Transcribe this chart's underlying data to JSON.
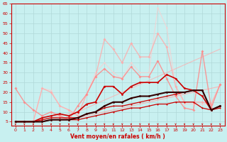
{
  "xlabel": "Vent moyen/en rafales ( km/h )",
  "xlim": [
    -0.5,
    23.5
  ],
  "ylim": [
    3,
    65
  ],
  "yticks": [
    5,
    10,
    15,
    20,
    25,
    30,
    35,
    40,
    45,
    50,
    55,
    60,
    65
  ],
  "xticks": [
    0,
    1,
    2,
    3,
    4,
    5,
    6,
    7,
    8,
    9,
    10,
    11,
    12,
    13,
    14,
    15,
    16,
    17,
    18,
    19,
    20,
    21,
    22,
    23
  ],
  "bg_color": "#c8f0f0",
  "grid_color": "#b0d8d8",
  "lines": [
    {
      "y": [
        5,
        5,
        5,
        5,
        6,
        6,
        7,
        7,
        8,
        9,
        10,
        11,
        12,
        13,
        14,
        15,
        16,
        17,
        18,
        19,
        20,
        21,
        22,
        23
      ],
      "color": "#ffaaaa",
      "lw": 0.8,
      "marker": null,
      "ms": 0,
      "alpha": 0.8
    },
    {
      "y": [
        5,
        5,
        5,
        6,
        7,
        8,
        9,
        10,
        12,
        14,
        16,
        18,
        20,
        22,
        24,
        26,
        28,
        30,
        32,
        34,
        36,
        38,
        40,
        42
      ],
      "color": "#ffaaaa",
      "lw": 0.8,
      "marker": null,
      "ms": 0,
      "alpha": 0.7
    },
    {
      "y": [
        5,
        5,
        5,
        22,
        21,
        13,
        11,
        8,
        19,
        30,
        35,
        30,
        27,
        35,
        30,
        30,
        63,
        53,
        23,
        14,
        14,
        14,
        14,
        24
      ],
      "color": "#ffcccc",
      "lw": 0.8,
      "marker": "D",
      "ms": 1.5,
      "alpha": 0.7
    },
    {
      "y": [
        5,
        5,
        5,
        22,
        20,
        13,
        11,
        8,
        19,
        28,
        47,
        42,
        35,
        45,
        38,
        38,
        50,
        43,
        23,
        15,
        15,
        15,
        14,
        24
      ],
      "color": "#ffaaaa",
      "lw": 1.0,
      "marker": "D",
      "ms": 2,
      "alpha": 0.8
    },
    {
      "y": [
        22,
        15,
        11,
        8,
        10,
        8,
        6,
        13,
        19,
        28,
        32,
        28,
        27,
        33,
        28,
        28,
        36,
        27,
        18,
        12,
        11,
        41,
        12,
        24
      ],
      "color": "#ff8888",
      "lw": 1.0,
      "marker": "D",
      "ms": 2,
      "alpha": 0.85
    },
    {
      "y": [
        5,
        5,
        5,
        7,
        8,
        9,
        8,
        10,
        14,
        15,
        23,
        23,
        19,
        23,
        25,
        25,
        25,
        29,
        27,
        22,
        21,
        18,
        11,
        13
      ],
      "color": "#cc0000",
      "lw": 1.2,
      "marker": "o",
      "ms": 2,
      "alpha": 1.0
    },
    {
      "y": [
        5,
        5,
        5,
        6,
        7,
        7,
        7,
        7,
        9,
        10,
        12,
        13,
        13,
        14,
        15,
        16,
        17,
        18,
        19,
        20,
        21,
        21,
        11,
        13
      ],
      "color": "#cc0000",
      "lw": 0.9,
      "marker": "o",
      "ms": 1.5,
      "alpha": 1.0
    },
    {
      "y": [
        5,
        5,
        5,
        5,
        6,
        6,
        6,
        6,
        7,
        8,
        9,
        10,
        11,
        12,
        12,
        13,
        14,
        14,
        15,
        15,
        15,
        12,
        11,
        12
      ],
      "color": "#cc0000",
      "lw": 0.9,
      "marker": "o",
      "ms": 1.5,
      "alpha": 1.0
    },
    {
      "y": [
        5,
        5,
        5,
        5,
        6,
        6,
        6,
        7,
        9,
        10,
        13,
        15,
        15,
        17,
        18,
        18,
        19,
        20,
        20,
        20,
        21,
        21,
        11,
        13
      ],
      "color": "#330000",
      "lw": 1.5,
      "marker": "o",
      "ms": 2,
      "alpha": 1.0
    }
  ],
  "arrow_color": "#cc0000"
}
